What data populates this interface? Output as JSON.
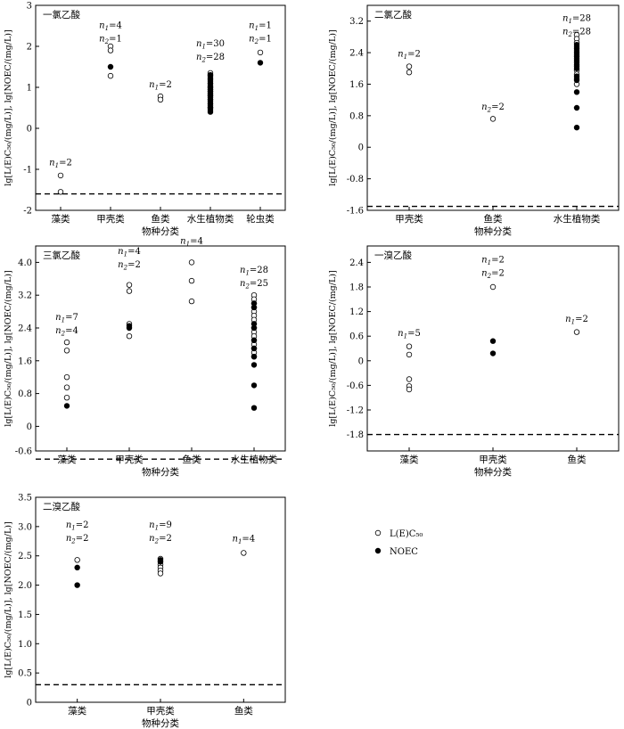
{
  "chart_data": [
    {
      "type": "scatter",
      "title": "一氯乙酸",
      "xlabel": "物种分类",
      "ylabel": "lg[L(E)C₅₀/(mg/L)], lg[NOEC/(mg/L)]",
      "categories": [
        "藻类",
        "甲壳类",
        "鱼类",
        "水生植物类",
        "轮虫类"
      ],
      "ylim": [
        -2,
        3
      ],
      "yticks": [
        -2,
        -1,
        0,
        1,
        2,
        3
      ],
      "ytick_labels": [
        "-2",
        "-1",
        "0",
        "1",
        "2",
        "3"
      ],
      "threshold": -1.6,
      "series": [
        {
          "name": "L(E)C₅₀",
          "points": [
            [
              0,
              -1.15
            ],
            [
              0,
              -1.55
            ],
            [
              1,
              2.0
            ],
            [
              1,
              1.9
            ],
            [
              1,
              1.28
            ],
            [
              2,
              0.78
            ],
            [
              2,
              0.7
            ],
            [
              3,
              1.35
            ],
            [
              3,
              1.3
            ],
            [
              3,
              1.25
            ],
            [
              3,
              1.2
            ],
            [
              3,
              1.15
            ],
            [
              3,
              1.1
            ],
            [
              3,
              1.05
            ],
            [
              3,
              1.0
            ],
            [
              3,
              0.95
            ],
            [
              3,
              0.9
            ],
            [
              3,
              0.85
            ],
            [
              3,
              0.8
            ],
            [
              3,
              0.75
            ],
            [
              3,
              0.7
            ],
            [
              3,
              0.65
            ],
            [
              3,
              0.6
            ],
            [
              3,
              0.55
            ],
            [
              3,
              0.5
            ],
            [
              4,
              1.85
            ]
          ]
        },
        {
          "name": "NOEC",
          "points": [
            [
              1,
              1.5
            ],
            [
              3,
              1.3
            ],
            [
              3,
              1.2
            ],
            [
              3,
              1.1
            ],
            [
              3,
              1.0
            ],
            [
              3,
              0.95
            ],
            [
              3,
              0.9
            ],
            [
              3,
              0.85
            ],
            [
              3,
              0.8
            ],
            [
              3,
              0.7
            ],
            [
              3,
              0.6
            ],
            [
              3,
              0.5
            ],
            [
              3,
              0.45
            ],
            [
              3,
              0.4
            ],
            [
              4,
              1.6
            ]
          ]
        }
      ],
      "annotations": [
        {
          "cat": 0,
          "lines": [
            [
              "1",
              "=2"
            ]
          ],
          "y": -0.9
        },
        {
          "cat": 1,
          "lines": [
            [
              "1",
              "=4"
            ],
            [
              "2",
              "=1"
            ]
          ],
          "y": 2.45
        },
        {
          "cat": 2,
          "lines": [
            [
              "1",
              "=2"
            ]
          ],
          "y": 1.0
        },
        {
          "cat": 3,
          "lines": [
            [
              "1",
              "=30"
            ],
            [
              "2",
              "=28"
            ]
          ],
          "y": 2.0
        },
        {
          "cat": 4,
          "lines": [
            [
              "1",
              "=1"
            ],
            [
              "2",
              "=1"
            ]
          ],
          "y": 2.45
        }
      ]
    },
    {
      "type": "scatter",
      "title": "二氯乙酸",
      "xlabel": "物种分类",
      "ylabel": "lg[L(E)C₅₀/(mg/L)], lg[NOEC/(mg/L)]",
      "categories": [
        "甲壳类",
        "鱼类",
        "水生植物类"
      ],
      "ylim": [
        -1.6,
        3.6
      ],
      "yticks": [
        -1.6,
        -0.8,
        0,
        0.8,
        1.6,
        2.4,
        3.2
      ],
      "ytick_labels": [
        "-1.6",
        "-0.8",
        "0",
        "0.8",
        "1.6",
        "2.4",
        "3.2"
      ],
      "threshold": -1.5,
      "series": [
        {
          "name": "L(E)C₅₀",
          "points": [
            [
              0,
              2.05
            ],
            [
              0,
              1.9
            ],
            [
              1,
              0.72
            ],
            [
              2,
              2.85
            ],
            [
              2,
              2.75
            ],
            [
              2,
              2.65
            ],
            [
              2,
              2.55
            ],
            [
              2,
              2.45
            ],
            [
              2,
              2.35
            ],
            [
              2,
              2.25
            ],
            [
              2,
              2.15
            ],
            [
              2,
              2.05
            ],
            [
              2,
              1.95
            ],
            [
              2,
              1.85
            ],
            [
              2,
              1.75
            ],
            [
              2,
              1.6
            ]
          ]
        },
        {
          "name": "NOEC",
          "points": [
            [
              2,
              2.6
            ],
            [
              2,
              2.5
            ],
            [
              2,
              2.4
            ],
            [
              2,
              2.3
            ],
            [
              2,
              2.2
            ],
            [
              2,
              2.1
            ],
            [
              2,
              2.0
            ],
            [
              2,
              1.8
            ],
            [
              2,
              1.7
            ],
            [
              2,
              1.4
            ],
            [
              2,
              1.0
            ],
            [
              2,
              0.5
            ]
          ]
        }
      ],
      "annotations": [
        {
          "cat": 0,
          "lines": [
            [
              "1",
              "=2"
            ]
          ],
          "y": 2.3
        },
        {
          "cat": 1,
          "lines": [
            [
              "2",
              "=2"
            ]
          ],
          "y": 0.95
        },
        {
          "cat": 2,
          "lines": [
            [
              "1",
              "=28"
            ],
            [
              "2",
              "=28"
            ]
          ],
          "y": 3.2
        }
      ]
    },
    {
      "type": "scatter",
      "title": "三氯乙酸",
      "xlabel": "物种分类",
      "ylabel": "lg[L(E)C₅₀/(mg/L)], lg[NOEC/(mg/L)]",
      "categories": [
        "藻类",
        "甲壳类",
        "鱼类",
        "水生植物类"
      ],
      "ylim": [
        -0.6,
        4.4
      ],
      "yticks": [
        -0.6,
        0,
        0.8,
        1.6,
        2.4,
        3.2,
        4.0
      ],
      "ytick_labels": [
        "-0.6",
        "0",
        "0.8",
        "1.6",
        "2.4",
        "3.2",
        "4.0"
      ],
      "threshold": -0.8,
      "series": [
        {
          "name": "L(E)C₅₀",
          "points": [
            [
              0,
              2.05
            ],
            [
              0,
              1.85
            ],
            [
              0,
              1.2
            ],
            [
              0,
              0.95
            ],
            [
              0,
              0.7
            ],
            [
              1,
              3.45
            ],
            [
              1,
              3.3
            ],
            [
              1,
              2.5
            ],
            [
              1,
              2.2
            ],
            [
              2,
              4.0
            ],
            [
              2,
              3.55
            ],
            [
              2,
              3.05
            ],
            [
              3,
              3.2
            ],
            [
              3,
              3.1
            ],
            [
              3,
              3.0
            ],
            [
              3,
              2.9
            ],
            [
              3,
              2.8
            ],
            [
              3,
              2.7
            ],
            [
              3,
              2.6
            ],
            [
              3,
              2.5
            ],
            [
              3,
              2.4
            ],
            [
              3,
              2.3
            ],
            [
              3,
              2.2
            ],
            [
              3,
              2.1
            ],
            [
              3,
              2.0
            ],
            [
              3,
              1.9
            ],
            [
              3,
              1.8
            ],
            [
              3,
              1.7
            ]
          ]
        },
        {
          "name": "NOEC",
          "points": [
            [
              0,
              0.5
            ],
            [
              1,
              2.45
            ],
            [
              1,
              2.4
            ],
            [
              3,
              3.0
            ],
            [
              3,
              2.9
            ],
            [
              3,
              2.5
            ],
            [
              3,
              2.4
            ],
            [
              3,
              2.1
            ],
            [
              3,
              1.9
            ],
            [
              3,
              1.7
            ],
            [
              3,
              1.5
            ],
            [
              3,
              1.0
            ],
            [
              3,
              0.45
            ]
          ]
        }
      ],
      "annotations": [
        {
          "cat": 0,
          "lines": [
            [
              "1",
              "=7"
            ],
            [
              "2",
              "=4"
            ]
          ],
          "y": 2.6
        },
        {
          "cat": 1,
          "lines": [
            [
              "1",
              "=4"
            ],
            [
              "2",
              "=2"
            ]
          ],
          "y": 4.2
        },
        {
          "cat": 2,
          "lines": [
            [
              "1",
              "=4"
            ]
          ],
          "y": 4.45
        },
        {
          "cat": 3,
          "lines": [
            [
              "1",
              "=28"
            ],
            [
              "2",
              "=25"
            ]
          ],
          "y": 3.75
        }
      ]
    },
    {
      "type": "scatter",
      "title": "一溴乙酸",
      "xlabel": "物种分类",
      "ylabel": "lg[L(E)C₅₀/(mg/L)], lg[NOEC/(mg/L)]",
      "categories": [
        "藻类",
        "甲壳类",
        "鱼类"
      ],
      "ylim": [
        -2.2,
        2.8
      ],
      "yticks": [
        -1.8,
        -1.2,
        -0.6,
        0,
        0.6,
        1.2,
        1.8,
        2.4
      ],
      "ytick_labels": [
        "-1.8",
        "-1.2",
        "-0.6",
        "0",
        "0.6",
        "1.2",
        "1.8",
        "2.4"
      ],
      "threshold": -1.8,
      "series": [
        {
          "name": "L(E)C₅₀",
          "points": [
            [
              0,
              0.35
            ],
            [
              0,
              0.15
            ],
            [
              0,
              -0.45
            ],
            [
              0,
              -0.62
            ],
            [
              0,
              -0.7
            ],
            [
              1,
              1.8
            ],
            [
              2,
              0.7
            ]
          ]
        },
        {
          "name": "NOEC",
          "points": [
            [
              1,
              0.48
            ],
            [
              1,
              0.18
            ]
          ]
        }
      ],
      "annotations": [
        {
          "cat": 0,
          "lines": [
            [
              "1",
              "=5"
            ]
          ],
          "y": 0.6
        },
        {
          "cat": 1,
          "lines": [
            [
              "1",
              "=2"
            ],
            [
              "2",
              "=2"
            ]
          ],
          "y": 2.4
        },
        {
          "cat": 2,
          "lines": [
            [
              "1",
              "=2"
            ]
          ],
          "y": 0.95
        }
      ]
    },
    {
      "type": "scatter",
      "title": "二溴乙酸",
      "xlabel": "物种分类",
      "ylabel": "lg[L(E)C₅₀/(mg/L)], lg[NOEC/(mg/L)]",
      "categories": [
        "藻类",
        "甲壳类",
        "鱼类"
      ],
      "ylim": [
        0,
        3.5
      ],
      "yticks": [
        0,
        0.5,
        1.0,
        1.5,
        2.0,
        2.5,
        3.0,
        3.5
      ],
      "ytick_labels": [
        "0",
        "0.5",
        "1.0",
        "1.5",
        "2.0",
        "2.5",
        "3.0",
        "3.5"
      ],
      "threshold": 0.3,
      "series": [
        {
          "name": "L(E)C₅₀",
          "points": [
            [
              0,
              2.43
            ],
            [
              1,
              2.45
            ],
            [
              1,
              2.4
            ],
            [
              1,
              2.35
            ],
            [
              1,
              2.3
            ],
            [
              1,
              2.25
            ],
            [
              1,
              2.2
            ],
            [
              2,
              2.55
            ]
          ]
        },
        {
          "name": "NOEC",
          "points": [
            [
              0,
              2.3
            ],
            [
              0,
              2.0
            ],
            [
              1,
              2.43
            ],
            [
              1,
              2.4
            ]
          ]
        }
      ],
      "annotations": [
        {
          "cat": 0,
          "lines": [
            [
              "1",
              "=2"
            ],
            [
              "2",
              "=2"
            ]
          ],
          "y": 2.98
        },
        {
          "cat": 1,
          "lines": [
            [
              "1",
              "=9"
            ],
            [
              "2",
              "=2"
            ]
          ],
          "y": 2.98
        },
        {
          "cat": 2,
          "lines": [
            [
              "1",
              "=4"
            ]
          ],
          "y": 2.75
        }
      ]
    }
  ],
  "legend": {
    "items": [
      {
        "label": "L(E)C₅₀",
        "marker": "open-circle"
      },
      {
        "label": "NOEC",
        "marker": "filled-circle"
      }
    ]
  },
  "colors": {
    "axis": "#000000",
    "marker_open": "#ffffff",
    "marker_filled": "#000000"
  }
}
